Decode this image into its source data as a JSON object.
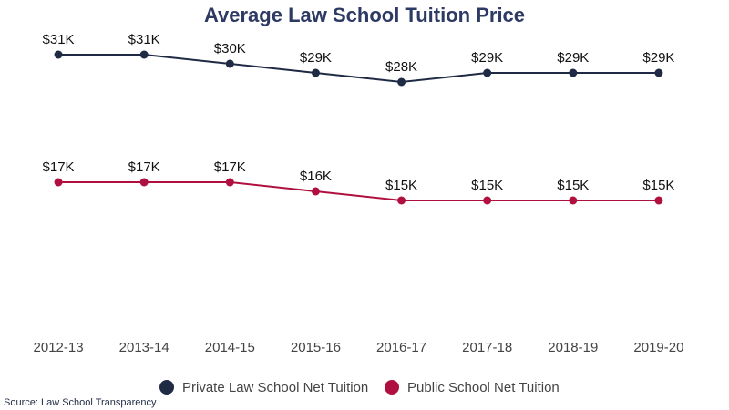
{
  "chart_data": {
    "type": "line",
    "title": "Average Law School Tuition Price",
    "source": "Source: Law School Transparency",
    "categories": [
      "2012-13",
      "2013-14",
      "2014-15",
      "2015-16",
      "2016-17",
      "2017-18",
      "2018-19",
      "2019-20"
    ],
    "series": [
      {
        "name": "Private Law School Net Tuition",
        "color": "#1f2a44",
        "values": [
          31,
          31,
          30,
          29,
          28,
          29,
          29,
          29
        ],
        "value_labels": [
          "$31K",
          "$31K",
          "$30K",
          "$29K",
          "$28K",
          "$29K",
          "$29K",
          "$29K"
        ]
      },
      {
        "name": "Public School Net Tuition",
        "color": "#b0103f",
        "values": [
          17,
          17,
          17,
          16,
          15,
          15,
          15,
          15
        ],
        "value_labels": [
          "$17K",
          "$17K",
          "$17K",
          "$16K",
          "$15K",
          "$15K",
          "$15K",
          "$15K"
        ]
      }
    ],
    "ylim": [
      0,
      33
    ]
  }
}
